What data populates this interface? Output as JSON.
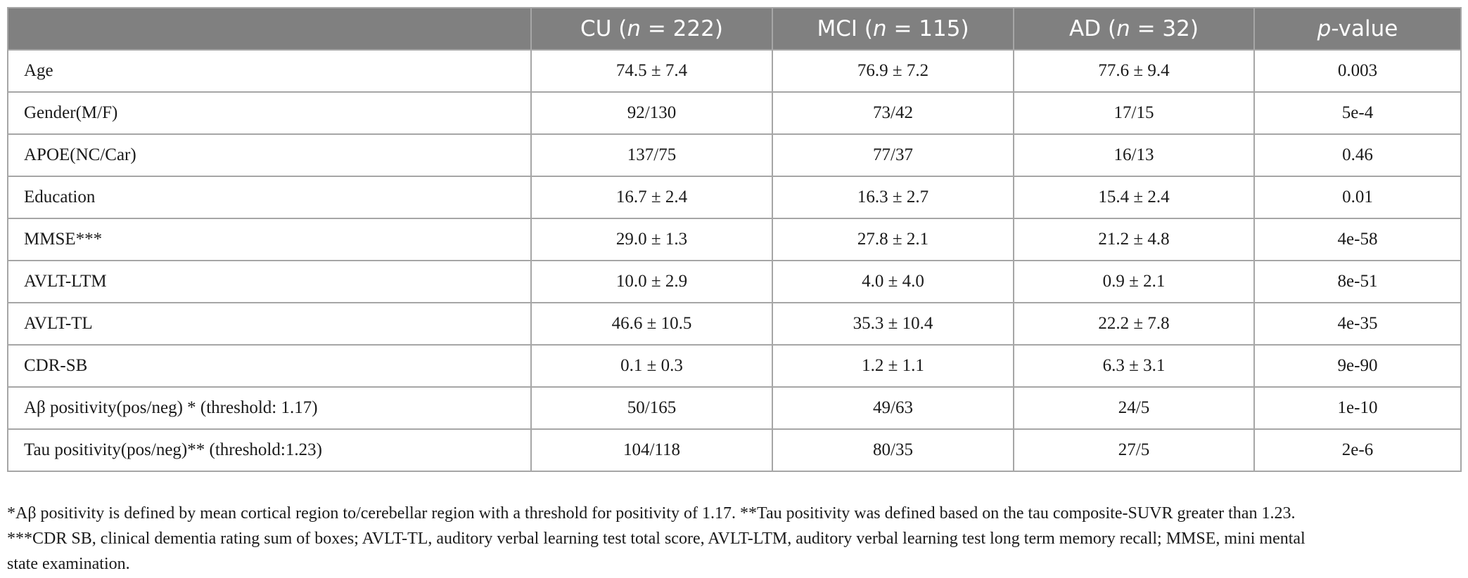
{
  "table": {
    "headers": [
      {
        "pre": "",
        "italic": "",
        "post": ""
      },
      {
        "pre": "CU (",
        "italic": "n",
        "post": " = 222)"
      },
      {
        "pre": "MCI (",
        "italic": "n",
        "post": " = 115)"
      },
      {
        "pre": "AD (",
        "italic": "n",
        "post": " = 32)"
      },
      {
        "pre": "",
        "italic": "p",
        "post": "-value"
      }
    ],
    "rows": [
      {
        "label": "Age",
        "cu": "74.5 ± 7.4",
        "mci": "76.9 ± 7.2",
        "ad": "77.6 ± 9.4",
        "p": "0.003"
      },
      {
        "label": "Gender(M/F)",
        "cu": "92/130",
        "mci": "73/42",
        "ad": "17/15",
        "p": "5e-4"
      },
      {
        "label": "APOE(NC/Car)",
        "cu": "137/75",
        "mci": "77/37",
        "ad": "16/13",
        "p": "0.46"
      },
      {
        "label": "Education",
        "cu": "16.7 ± 2.4",
        "mci": "16.3 ± 2.7",
        "ad": "15.4 ± 2.4",
        "p": "0.01"
      },
      {
        "label": "MMSE***",
        "cu": "29.0 ± 1.3",
        "mci": "27.8 ± 2.1",
        "ad": "21.2 ± 4.8",
        "p": "4e-58"
      },
      {
        "label": "AVLT-LTM",
        "cu": "10.0 ± 2.9",
        "mci": "4.0 ± 4.0",
        "ad": "0.9 ± 2.1",
        "p": "8e-51"
      },
      {
        "label": "AVLT-TL",
        "cu": "46.6 ± 10.5",
        "mci": "35.3 ± 10.4",
        "ad": "22.2 ± 7.8",
        "p": "4e-35"
      },
      {
        "label": "CDR-SB",
        "cu": "0.1 ± 0.3",
        "mci": "1.2 ± 1.1",
        "ad": "6.3 ± 3.1",
        "p": "9e-90"
      },
      {
        "label": "Aβ positivity(pos/neg) * (threshold: 1.17)",
        "cu": "50/165",
        "mci": "49/63",
        "ad": "24/5",
        "p": "1e-10"
      },
      {
        "label": "Tau positivity(pos/neg)** (threshold:1.23)",
        "cu": "104/118",
        "mci": "80/35",
        "ad": "27/5",
        "p": "2e-6"
      }
    ]
  },
  "footnote": {
    "line1": "*Aβ positivity is defined by mean cortical region to/cerebellar region with a threshold for positivity of 1.17. **Tau positivity was defined based on the tau composite-SUVR greater than 1.23.",
    "line2": "***CDR SB, clinical dementia rating sum of boxes; AVLT-TL, auditory verbal learning test total score, AVLT-LTM, auditory verbal learning test long term memory recall; MMSE, mini mental",
    "line3": "state examination."
  }
}
